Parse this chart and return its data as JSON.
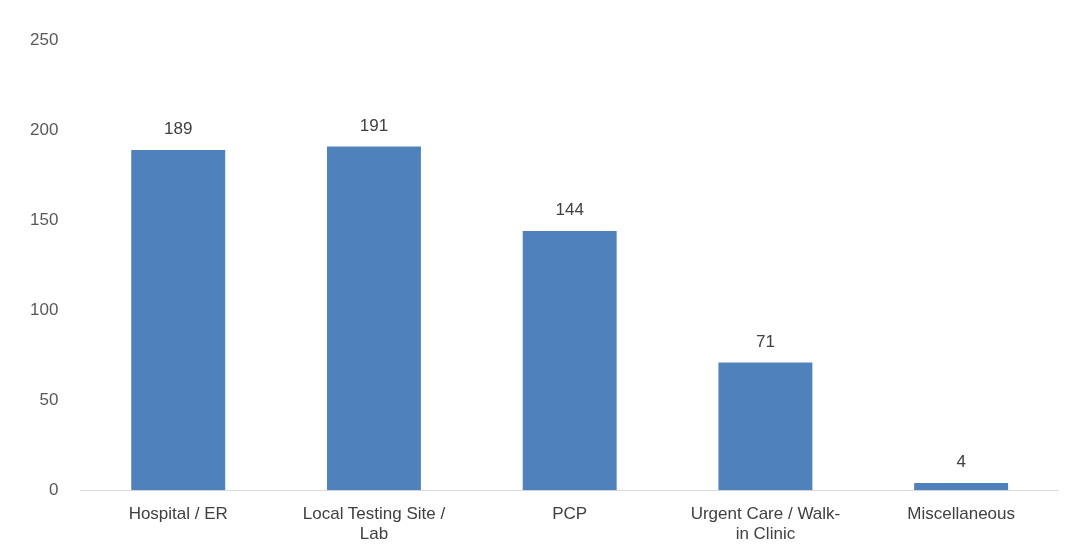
{
  "chart_data": {
    "type": "bar",
    "categories": [
      "Hospital / ER",
      "Local Testing Site / Lab",
      "PCP",
      "Urgent Care / Walk-in Clinic",
      "Miscellaneous"
    ],
    "values": [
      189,
      191,
      144,
      71,
      4
    ],
    "color": "#4f81bd",
    "ylim": [
      0,
      250
    ],
    "yticks": [
      0,
      50,
      100,
      150,
      200,
      250
    ],
    "grid": false,
    "legend": false,
    "data_labels": true
  }
}
